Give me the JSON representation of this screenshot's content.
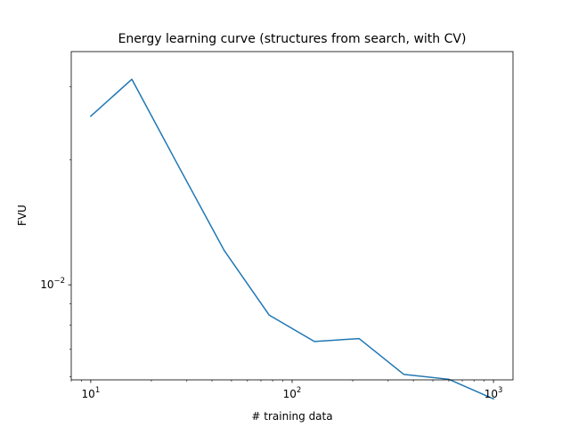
{
  "chart_data": {
    "type": "line",
    "title": "Energy learning curve (structures from search, with CV)",
    "xlabel": "# training data",
    "ylabel": "FVU",
    "xscale": "log",
    "yscale": "log",
    "xlim": [
      8.0,
      1250
    ],
    "ylim": [
      0.0059,
      0.0365
    ],
    "grid": false,
    "legend": "none",
    "x_ticks": [
      {
        "value": 10,
        "base": "10",
        "exp": "1"
      },
      {
        "value": 100,
        "base": "10",
        "exp": "2"
      },
      {
        "value": 1000,
        "base": "10",
        "exp": "3"
      }
    ],
    "y_ticks": [
      {
        "value": 0.01,
        "base": "10",
        "exp": "−2"
      }
    ],
    "series": [
      {
        "color": "#1f77b4",
        "x": [
          10,
          16,
          27,
          46,
          77,
          129,
          215,
          359,
          599,
          1000
        ],
        "y": [
          0.0255,
          0.0313,
          0.0195,
          0.0121,
          0.00845,
          0.0073,
          0.00742,
          0.00608,
          0.00592,
          0.00531
        ]
      }
    ]
  }
}
